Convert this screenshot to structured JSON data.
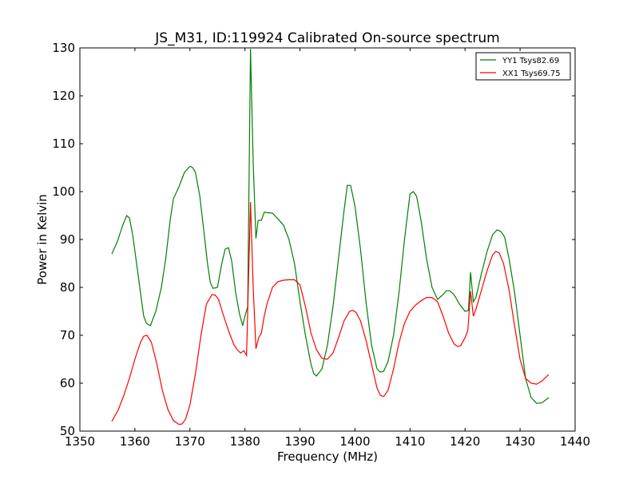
{
  "chart_data": {
    "type": "line",
    "title": "JS_M31, ID:119924 Calibrated On-source spectrum",
    "xlabel": "Frequency (MHz)",
    "ylabel": "Power in Kelvin",
    "xlim": [
      1350,
      1440
    ],
    "ylim": [
      50,
      130
    ],
    "xticks": [
      1350,
      1360,
      1370,
      1380,
      1390,
      1400,
      1410,
      1420,
      1430,
      1440
    ],
    "yticks": [
      50,
      60,
      70,
      80,
      90,
      100,
      110,
      120,
      130
    ],
    "grid": false,
    "legend_position": "top-right",
    "series": [
      {
        "name": "YY1 Tsys82.69",
        "color": "#008000",
        "x": [
          1355.8,
          1356.8,
          1357.8,
          1358.5,
          1359.0,
          1359.6,
          1360.3,
          1361.0,
          1361.6,
          1362.1,
          1362.8,
          1363.8,
          1364.8,
          1365.6,
          1366.4,
          1367.0,
          1368.0,
          1369.0,
          1370.0,
          1370.5,
          1371.0,
          1371.8,
          1372.6,
          1373.2,
          1373.7,
          1374.2,
          1375.0,
          1375.8,
          1376.4,
          1377.0,
          1377.6,
          1378.3,
          1379.0,
          1379.6,
          1380.0,
          1380.5,
          1381.0,
          1381.5,
          1382.0,
          1382.4,
          1383.0,
          1383.5,
          1384.0,
          1385.0,
          1386.0,
          1387.0,
          1388.0,
          1389.0,
          1390.0,
          1391.0,
          1392.0,
          1392.5,
          1393.0,
          1394.0,
          1395.0,
          1396.0,
          1397.0,
          1398.0,
          1398.6,
          1399.2,
          1400.0,
          1401.0,
          1402.0,
          1403.0,
          1404.0,
          1404.6,
          1405.2,
          1406.0,
          1407.0,
          1408.0,
          1409.0,
          1410.0,
          1410.6,
          1411.2,
          1412.0,
          1413.0,
          1414.0,
          1415.0,
          1416.0,
          1416.6,
          1417.2,
          1418.0,
          1419.0,
          1420.0,
          1420.6,
          1421.0,
          1421.5,
          1422.0,
          1423.0,
          1424.0,
          1425.0,
          1425.8,
          1426.5,
          1427.2,
          1428.0,
          1429.0,
          1430.0,
          1431.0,
          1432.0,
          1433.0,
          1434.0,
          1435.2
        ],
        "values": [
          87,
          89.5,
          93,
          95,
          94.5,
          91,
          85,
          79,
          74,
          72.5,
          72,
          75,
          80,
          86,
          94,
          98.5,
          101,
          104,
          105.3,
          105,
          104,
          99,
          91,
          85,
          81,
          79.8,
          80,
          85,
          88,
          88.3,
          85.5,
          79,
          74.5,
          72,
          74,
          76,
          129.8,
          106,
          90.2,
          94,
          94,
          95.7,
          95.6,
          95.5,
          94.3,
          93,
          90,
          85,
          77,
          70,
          64,
          62,
          61.5,
          63,
          68,
          76,
          86,
          96,
          101.3,
          101.3,
          97,
          88,
          77,
          68,
          63,
          62.3,
          62.5,
          64.5,
          70,
          79,
          90,
          99.5,
          100,
          99,
          94,
          86,
          80,
          77.5,
          78.5,
          79.3,
          79.3,
          78.5,
          76.5,
          75,
          75.2,
          83.2,
          77,
          78,
          83,
          87.5,
          91,
          92,
          91.7,
          90.5,
          86,
          79,
          70,
          61,
          57,
          55.8,
          55.9,
          57
        ]
      },
      {
        "name": "XX1 Tsys69.75",
        "color": "#ff0000",
        "x": [
          1355.8,
          1357.0,
          1358.0,
          1359.0,
          1360.0,
          1361.0,
          1361.6,
          1362.2,
          1363.0,
          1364.0,
          1365.0,
          1366.0,
          1367.0,
          1368.0,
          1368.6,
          1369.2,
          1370.0,
          1371.0,
          1372.0,
          1373.0,
          1374.0,
          1374.6,
          1375.2,
          1376.0,
          1377.0,
          1378.0,
          1378.6,
          1379.2,
          1379.8,
          1380.3,
          1381.0,
          1381.5,
          1382.0,
          1382.5,
          1383.0,
          1383.5,
          1384.0,
          1385.0,
          1386.0,
          1387.0,
          1388.0,
          1389.0,
          1390.0,
          1391.0,
          1392.0,
          1393.0,
          1394.0,
          1395.0,
          1396.0,
          1397.0,
          1398.0,
          1399.0,
          1399.6,
          1400.2,
          1401.0,
          1402.0,
          1403.0,
          1404.0,
          1404.6,
          1405.2,
          1406.0,
          1407.0,
          1408.0,
          1409.0,
          1410.0,
          1411.0,
          1412.0,
          1413.0,
          1414.0,
          1415.0,
          1416.0,
          1417.0,
          1418.0,
          1418.6,
          1419.2,
          1420.0,
          1420.5,
          1421.0,
          1421.5,
          1422.0,
          1423.0,
          1424.0,
          1425.0,
          1425.6,
          1426.2,
          1427.0,
          1428.0,
          1429.0,
          1430.0,
          1431.0,
          1432.0,
          1433.0,
          1434.0,
          1435.2
        ],
        "values": [
          52,
          54.5,
          57.5,
          61,
          65,
          68.5,
          69.8,
          70,
          68.5,
          64,
          58.5,
          54.5,
          52.2,
          51.4,
          51.5,
          52.5,
          55.5,
          62,
          70,
          76.5,
          78.5,
          78.4,
          77.5,
          74.5,
          71,
          68,
          67,
          66.3,
          66.8,
          65.8,
          97.8,
          80,
          67.2,
          69.5,
          70.5,
          74,
          76.5,
          80,
          81.2,
          81.5,
          81.6,
          81.6,
          80.5,
          76,
          70.5,
          67,
          65.2,
          65,
          66.3,
          69.5,
          73,
          75,
          75.2,
          74.8,
          73,
          69,
          64,
          59,
          57.5,
          57.2,
          58.5,
          63,
          68.5,
          72.5,
          75,
          76.3,
          77.2,
          77.9,
          77.9,
          77,
          74,
          70.5,
          68.2,
          67.7,
          67.8,
          69.5,
          71,
          79.2,
          74,
          75.5,
          79.5,
          83.5,
          86.8,
          87.5,
          87.2,
          85,
          79.5,
          72,
          65,
          61,
          60,
          59.8,
          60.5,
          61.8
        ]
      }
    ]
  }
}
